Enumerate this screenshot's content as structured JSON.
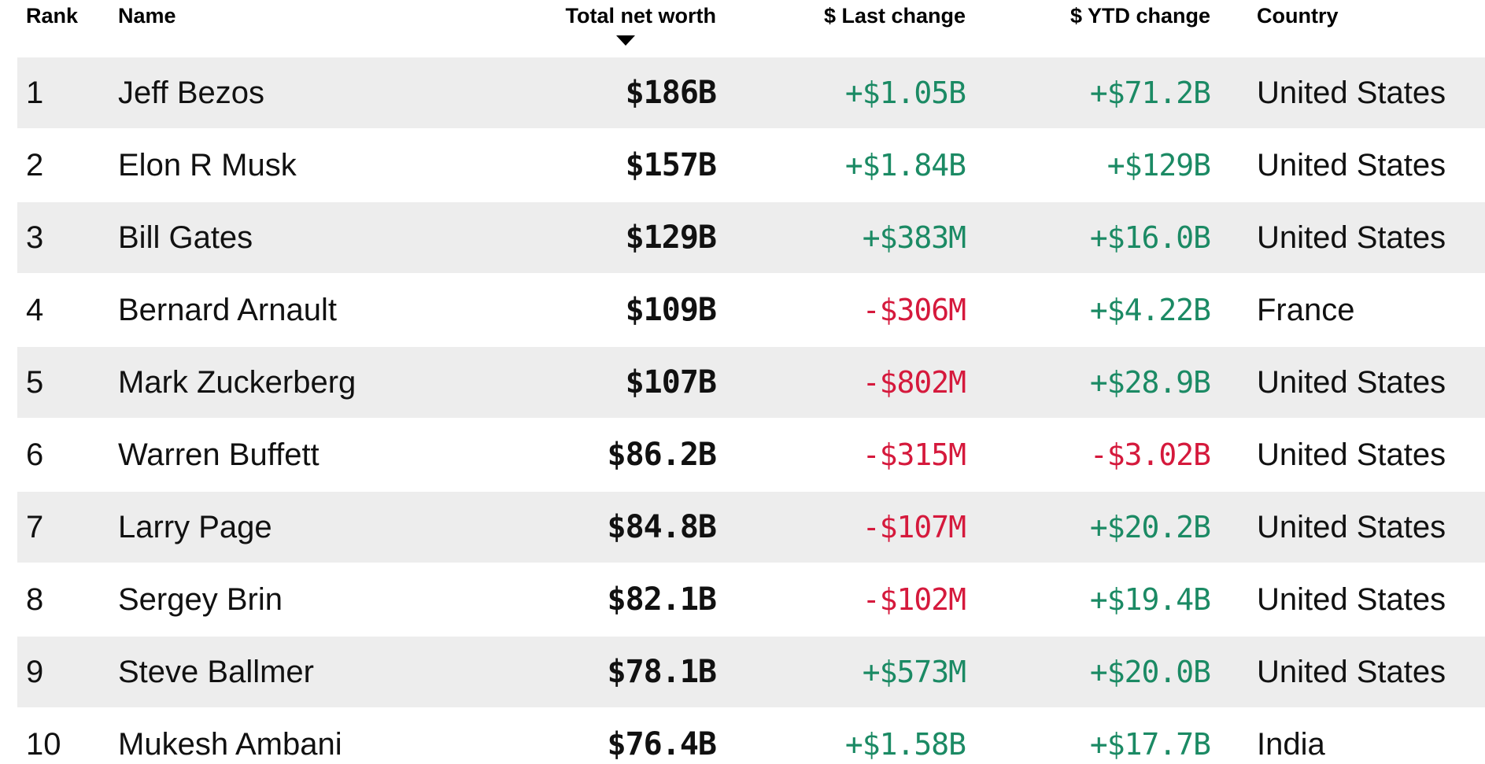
{
  "colors": {
    "positive": "#1b8a64",
    "negative": "#d5193c",
    "stripe": "#ededed",
    "header_text": "#000000",
    "body_text": "#111111"
  },
  "table": {
    "columns": [
      {
        "label": "Rank",
        "align": "left"
      },
      {
        "label": "Name",
        "align": "left"
      },
      {
        "label": "Total net worth",
        "align": "right",
        "sort": "descending"
      },
      {
        "label": "$ Last change",
        "align": "right"
      },
      {
        "label": "$ YTD change",
        "align": "right"
      },
      {
        "label": "Country",
        "align": "left"
      }
    ],
    "sort_icon": "sort-desc-arrow",
    "rows": [
      {
        "rank": "1",
        "name": "Jeff Bezos",
        "net_worth": "$186B",
        "last_change": "+$1.05B",
        "last_change_dir": "up",
        "ytd_change": "+$71.2B",
        "ytd_change_dir": "up",
        "country": "United States"
      },
      {
        "rank": "2",
        "name": "Elon R Musk",
        "net_worth": "$157B",
        "last_change": "+$1.84B",
        "last_change_dir": "up",
        "ytd_change": "+$129B",
        "ytd_change_dir": "up",
        "country": "United States"
      },
      {
        "rank": "3",
        "name": "Bill Gates",
        "net_worth": "$129B",
        "last_change": "+$383M",
        "last_change_dir": "up",
        "ytd_change": "+$16.0B",
        "ytd_change_dir": "up",
        "country": "United States"
      },
      {
        "rank": "4",
        "name": "Bernard Arnault",
        "net_worth": "$109B",
        "last_change": "-$306M",
        "last_change_dir": "down",
        "ytd_change": "+$4.22B",
        "ytd_change_dir": "up",
        "country": "France"
      },
      {
        "rank": "5",
        "name": "Mark Zuckerberg",
        "net_worth": "$107B",
        "last_change": "-$802M",
        "last_change_dir": "down",
        "ytd_change": "+$28.9B",
        "ytd_change_dir": "up",
        "country": "United States"
      },
      {
        "rank": "6",
        "name": "Warren Buffett",
        "net_worth": "$86.2B",
        "last_change": "-$315M",
        "last_change_dir": "down",
        "ytd_change": "-$3.02B",
        "ytd_change_dir": "down",
        "country": "United States"
      },
      {
        "rank": "7",
        "name": "Larry Page",
        "net_worth": "$84.8B",
        "last_change": "-$107M",
        "last_change_dir": "down",
        "ytd_change": "+$20.2B",
        "ytd_change_dir": "up",
        "country": "United States"
      },
      {
        "rank": "8",
        "name": "Sergey Brin",
        "net_worth": "$82.1B",
        "last_change": "-$102M",
        "last_change_dir": "down",
        "ytd_change": "+$19.4B",
        "ytd_change_dir": "up",
        "country": "United States"
      },
      {
        "rank": "9",
        "name": "Steve Ballmer",
        "net_worth": "$78.1B",
        "last_change": "+$573M",
        "last_change_dir": "up",
        "ytd_change": "+$20.0B",
        "ytd_change_dir": "up",
        "country": "United States"
      },
      {
        "rank": "10",
        "name": "Mukesh Ambani",
        "net_worth": "$76.4B",
        "last_change": "+$1.58B",
        "last_change_dir": "up",
        "ytd_change": "+$17.7B",
        "ytd_change_dir": "up",
        "country": "India"
      }
    ]
  }
}
